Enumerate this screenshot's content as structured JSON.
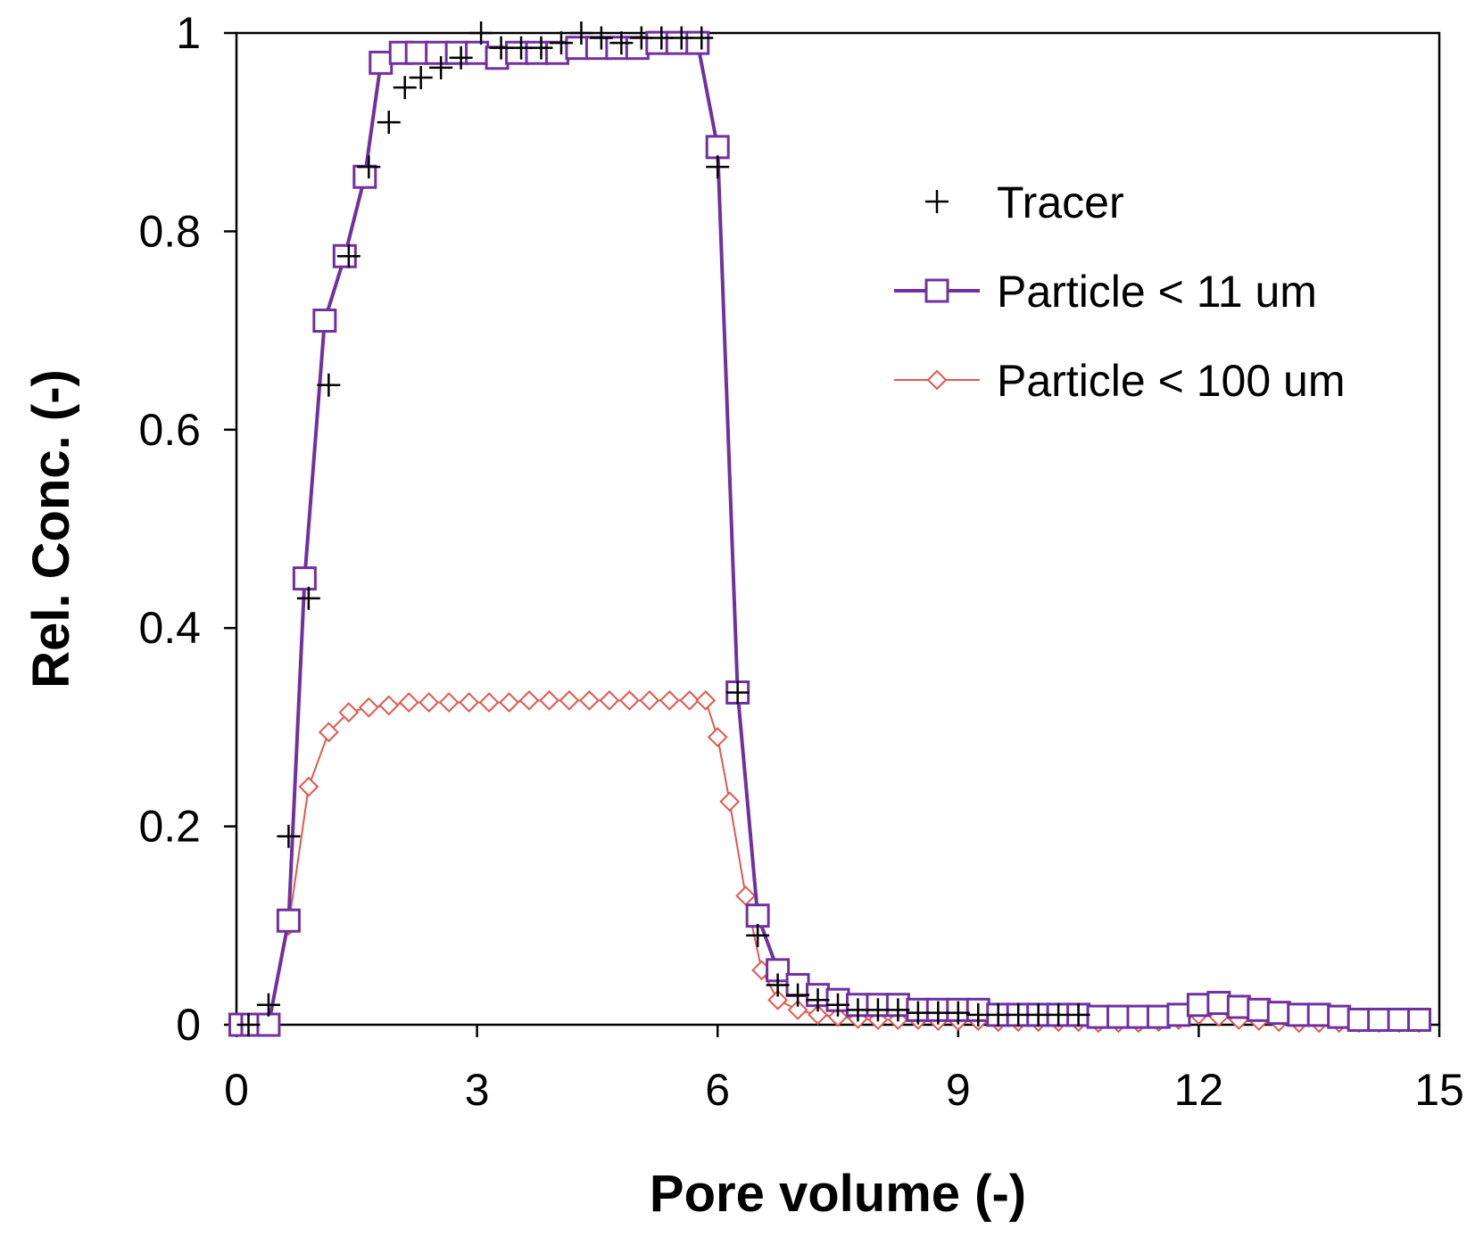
{
  "chart_data": {
    "type": "scatter",
    "title": "",
    "xlabel": "Pore volume (-)",
    "ylabel": "Rel. Conc. (-)",
    "xlim": [
      0,
      15
    ],
    "ylim": [
      0,
      1
    ],
    "xticks": [
      0,
      3,
      6,
      9,
      12,
      15
    ],
    "yticks": [
      0,
      0.2,
      0.4,
      0.6,
      0.8,
      1
    ],
    "xtick_labels": [
      "0",
      "3",
      "6",
      "9",
      "12",
      "15"
    ],
    "ytick_labels": [
      "0",
      "0.2",
      "0.4",
      "0.6",
      "0.8",
      "1"
    ],
    "grid": false,
    "legend_position": "right",
    "series": [
      {
        "name": "Tracer",
        "marker": "plus",
        "line": false,
        "color": "#000000",
        "x": [
          0.15,
          0.4,
          0.65,
          0.9,
          1.15,
          1.4,
          1.65,
          1.9,
          2.1,
          2.3,
          2.55,
          2.8,
          3.05,
          3.3,
          3.55,
          3.8,
          4.05,
          4.3,
          4.55,
          4.8,
          5.05,
          5.3,
          5.55,
          5.8,
          6.0,
          6.25,
          6.5,
          6.75,
          7.0,
          7.25,
          7.5,
          7.75,
          8.0,
          8.25,
          8.5,
          8.75,
          9.0,
          9.25,
          9.5,
          9.75,
          10.0,
          10.25,
          10.5
        ],
        "y": [
          0.0,
          0.02,
          0.19,
          0.43,
          0.645,
          0.775,
          0.865,
          0.91,
          0.945,
          0.955,
          0.965,
          0.975,
          1.0,
          0.985,
          0.985,
          0.985,
          0.99,
          1.0,
          0.995,
          0.99,
          0.995,
          0.995,
          0.995,
          0.995,
          0.865,
          0.335,
          0.09,
          0.04,
          0.03,
          0.025,
          0.02,
          0.015,
          0.015,
          0.015,
          0.012,
          0.012,
          0.012,
          0.01,
          0.01,
          0.01,
          0.01,
          0.01,
          0.01
        ]
      },
      {
        "name": "Particle < 11 um",
        "marker": "square",
        "line": true,
        "color": "#7030A0",
        "x": [
          0.05,
          0.2,
          0.4,
          0.65,
          0.85,
          1.1,
          1.35,
          1.6,
          1.8,
          2.05,
          2.25,
          2.5,
          2.75,
          3.0,
          3.25,
          3.5,
          3.75,
          4.0,
          4.25,
          4.5,
          4.75,
          5.0,
          5.25,
          5.5,
          5.75,
          6.0,
          6.25,
          6.5,
          6.75,
          7.0,
          7.25,
          7.5,
          7.75,
          8.0,
          8.25,
          8.5,
          8.75,
          9.0,
          9.25,
          9.5,
          9.75,
          10.0,
          10.25,
          10.5,
          10.75,
          11.0,
          11.25,
          11.5,
          11.75,
          12.0,
          12.25,
          12.5,
          12.75,
          13.0,
          13.25,
          13.5,
          13.75,
          14.0,
          14.25,
          14.5,
          14.75
        ],
        "y": [
          0.0,
          0.0,
          0.0,
          0.105,
          0.45,
          0.71,
          0.775,
          0.855,
          0.97,
          0.98,
          0.98,
          0.98,
          0.98,
          0.98,
          0.975,
          0.98,
          0.98,
          0.98,
          0.985,
          0.985,
          0.985,
          0.985,
          0.99,
          0.99,
          0.99,
          0.885,
          0.335,
          0.11,
          0.055,
          0.04,
          0.03,
          0.025,
          0.02,
          0.02,
          0.02,
          0.015,
          0.015,
          0.015,
          0.015,
          0.01,
          0.01,
          0.01,
          0.01,
          0.01,
          0.008,
          0.008,
          0.008,
          0.008,
          0.01,
          0.02,
          0.022,
          0.018,
          0.015,
          0.012,
          0.01,
          0.01,
          0.008,
          0.005,
          0.005,
          0.005,
          0.005
        ]
      },
      {
        "name": "Particle < 100 um",
        "marker": "diamond",
        "line": true,
        "color": "#E0584F",
        "x": [
          0.05,
          0.2,
          0.4,
          0.65,
          0.9,
          1.15,
          1.4,
          1.65,
          1.9,
          2.15,
          2.4,
          2.65,
          2.9,
          3.15,
          3.4,
          3.65,
          3.9,
          4.15,
          4.4,
          4.65,
          4.9,
          5.15,
          5.4,
          5.65,
          5.85,
          6.0,
          6.15,
          6.35,
          6.55,
          6.75,
          7.0,
          7.25,
          7.5,
          7.75,
          8.0,
          8.25,
          8.5,
          8.75,
          9.0,
          9.25,
          9.5,
          9.75,
          10.0,
          10.25,
          10.5,
          10.75,
          11.0,
          11.25,
          11.5,
          11.75,
          12.0,
          12.25,
          12.5,
          12.75,
          13.0,
          13.25,
          13.5,
          13.75,
          14.0,
          14.25,
          14.5,
          14.75
        ],
        "y": [
          0.0,
          0.0,
          0.0,
          0.1,
          0.24,
          0.295,
          0.315,
          0.32,
          0.322,
          0.325,
          0.325,
          0.325,
          0.325,
          0.325,
          0.325,
          0.327,
          0.327,
          0.327,
          0.327,
          0.327,
          0.327,
          0.327,
          0.327,
          0.327,
          0.327,
          0.29,
          0.225,
          0.13,
          0.055,
          0.025,
          0.015,
          0.01,
          0.008,
          0.006,
          0.005,
          0.005,
          0.005,
          0.004,
          0.004,
          0.004,
          0.003,
          0.003,
          0.003,
          0.003,
          0.003,
          0.002,
          0.002,
          0.002,
          0.003,
          0.005,
          0.01,
          0.008,
          0.005,
          0.004,
          0.003,
          0.002,
          0.002,
          0.002,
          0.002,
          0.002,
          0.002,
          0.002
        ]
      }
    ]
  }
}
